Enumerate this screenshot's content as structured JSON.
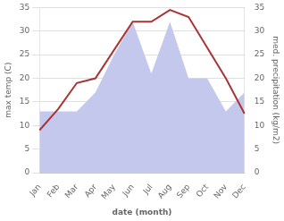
{
  "chart_data": {
    "type": "line",
    "categories": [
      "Jan",
      "Feb",
      "Mar",
      "Apr",
      "May",
      "Jun",
      "Jul",
      "Aug",
      "Sep",
      "Oct",
      "Nov",
      "Dec"
    ],
    "series": [
      {
        "type": "area",
        "color": "#c5c8ed",
        "axis": "y2",
        "values": [
          13,
          13,
          13,
          17,
          25,
          32,
          21,
          32,
          20,
          20,
          13,
          17
        ]
      },
      {
        "type": "line",
        "color": "#aa3333",
        "values": [
          9.0,
          13.5,
          19.0,
          20.0,
          26.0,
          32.0,
          32.0,
          34.5,
          33.0,
          26.5,
          20.0,
          12.5
        ]
      }
    ],
    "xlabel": "date (month)",
    "ylabel": "max temp (C)",
    "y2label": "med. precipitation (kg/m2)",
    "ylim": [
      0,
      35
    ],
    "yticks": [
      0,
      5,
      10,
      15,
      20,
      25,
      30,
      35
    ],
    "y2lim": [
      0,
      35
    ],
    "y2ticks": [
      0,
      5,
      10,
      15,
      20,
      25,
      30,
      35
    ],
    "grid": true
  }
}
